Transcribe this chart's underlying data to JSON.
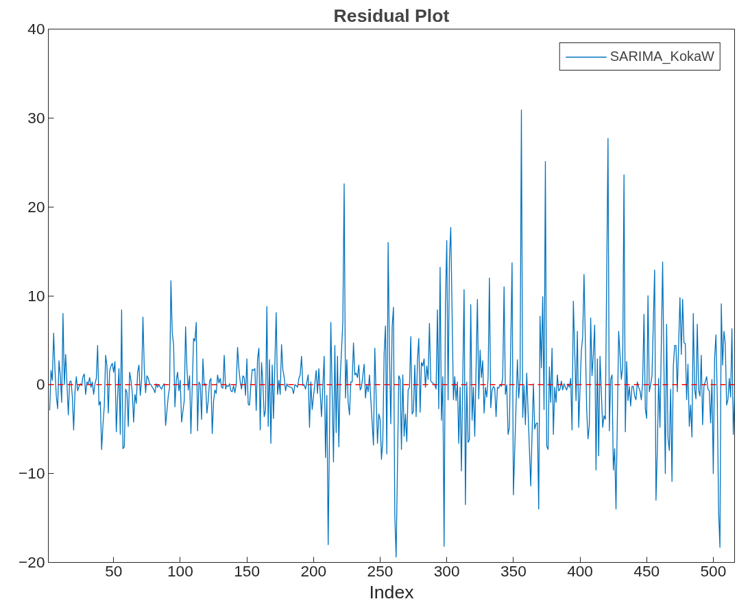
{
  "chart_data": {
    "type": "line",
    "title": "Residual Plot",
    "xlabel": "Index",
    "xlim": [
      1,
      516
    ],
    "xticks": [
      50,
      100,
      150,
      200,
      250,
      300,
      350,
      400,
      450,
      500
    ],
    "ylim": [
      -20,
      40
    ],
    "yticks": [
      -20,
      -10,
      0,
      10,
      20,
      30,
      40
    ],
    "legend": "top right",
    "ref_lines": [
      {
        "axis": "y",
        "value": 0,
        "label": null,
        "color": "#ff0000",
        "line_style": "dashed"
      }
    ],
    "series": [
      {
        "name": "SARIMA_KokaW",
        "color": "#0072bd",
        "x": [
          2,
          3,
          4,
          5,
          6,
          7,
          8,
          9,
          10,
          11,
          12,
          13,
          14,
          15,
          16,
          17,
          18,
          19,
          20,
          21,
          22,
          23,
          24,
          25,
          26,
          27,
          28,
          29,
          30,
          31,
          32,
          33,
          34,
          35,
          36,
          37,
          38,
          39,
          40,
          41,
          42,
          43,
          44,
          45,
          46,
          47,
          48,
          49,
          50,
          51,
          52,
          53,
          54,
          55,
          56,
          57,
          58,
          59,
          60,
          61,
          62,
          63,
          64,
          65,
          66,
          67,
          68,
          69,
          70,
          71,
          72,
          73,
          74,
          75,
          76,
          77,
          78,
          79,
          80,
          81,
          82,
          83,
          84,
          85,
          86,
          87,
          88,
          89,
          91,
          92,
          93,
          94,
          95,
          96,
          97,
          98,
          99,
          100,
          101,
          103,
          104,
          105,
          106,
          107,
          108,
          110,
          111,
          112,
          113,
          114,
          115,
          116,
          117,
          118,
          119,
          120,
          121,
          122,
          123,
          124,
          125,
          126,
          127,
          128,
          129,
          130,
          131,
          132,
          133,
          134,
          135,
          136,
          137,
          138,
          139,
          140,
          141,
          142,
          143,
          144,
          145,
          146,
          147,
          148,
          149,
          150,
          151,
          152,
          153,
          154,
          155,
          156,
          157,
          158,
          159,
          160,
          161,
          162,
          163,
          164,
          165,
          166,
          167,
          168,
          169,
          170,
          171,
          172,
          173,
          174,
          175,
          176,
          177,
          178,
          179,
          180,
          181,
          183,
          184,
          185,
          186,
          187,
          188,
          189,
          190,
          191,
          192,
          193,
          194,
          195,
          196,
          197,
          198,
          199,
          202,
          203,
          204,
          206,
          208,
          209,
          210,
          211,
          213,
          215,
          216,
          217,
          218,
          219,
          220,
          222,
          223,
          224,
          225,
          226,
          227,
          228,
          229,
          230,
          231,
          232,
          233,
          234,
          235,
          236,
          238,
          239,
          240,
          241,
          242,
          243,
          245,
          246,
          248,
          249,
          250,
          251,
          252,
          253,
          254,
          255,
          256,
          257,
          258,
          259,
          260,
          261,
          262,
          264,
          265,
          266,
          267,
          268,
          269,
          270,
          271,
          272,
          273,
          274,
          275,
          276,
          277,
          278,
          279,
          280,
          281,
          282,
          283,
          284,
          285,
          286,
          287,
          288,
          290,
          291,
          292,
          293,
          294,
          295,
          296,
          297,
          298,
          299,
          300,
          301,
          302,
          303,
          305,
          306,
          307,
          308,
          309,
          310,
          311,
          313,
          314,
          315,
          316,
          317,
          318,
          319,
          320,
          321,
          323,
          324,
          325,
          326,
          327,
          328,
          329,
          330,
          331,
          332,
          333,
          334,
          335,
          336,
          337,
          338,
          339,
          340,
          341,
          342,
          343,
          344,
          345,
          346,
          347,
          349,
          350,
          353,
          354,
          355,
          356,
          357,
          358,
          359,
          360,
          363,
          365,
          366,
          367,
          368,
          369,
          370,
          371,
          372,
          373,
          374,
          375,
          376,
          377,
          378,
          379,
          380,
          381,
          382,
          383,
          384,
          385,
          386,
          387,
          388,
          389,
          390,
          391,
          392,
          393,
          394,
          395,
          397,
          398,
          399,
          401,
          402,
          403,
          405,
          406,
          407,
          408,
          409,
          410,
          411,
          412,
          413,
          414,
          415,
          417,
          418,
          419,
          421,
          422,
          423,
          424,
          425,
          426,
          427,
          429,
          430,
          431,
          432,
          433,
          434,
          435,
          436,
          437,
          438,
          439,
          440,
          441,
          442,
          443,
          444,
          445,
          446,
          447,
          448,
          449,
          450,
          451,
          452,
          453,
          454,
          456,
          457,
          458,
          459,
          460,
          462,
          464,
          465,
          466,
          467,
          468,
          469,
          470,
          471,
          472,
          473,
          475,
          476,
          477,
          478,
          479,
          480,
          481,
          482,
          483,
          484,
          485,
          486,
          487,
          488,
          489,
          490,
          491,
          492,
          493,
          495,
          496,
          497,
          498,
          499,
          500,
          501,
          502,
          503,
          504,
          505,
          506,
          507,
          508,
          509,
          510,
          511,
          512,
          513,
          514,
          515,
          516
        ],
        "values": [
          -2.9,
          1.6,
          0.5,
          5.8,
          1.6,
          -1.3,
          -2.7,
          2.7,
          1.0,
          -2.0,
          8.0,
          0,
          3.4,
          0,
          -3.4,
          0.3,
          0.4,
          -1.3,
          -5.1,
          -0.8,
          0.9,
          -0.7,
          -0.2,
          0.1,
          -0.1,
          0.9,
          1.2,
          -1.1,
          0.3,
          0.1,
          0.8,
          -0.3,
          0.3,
          -1.1,
          0.1,
          0.7,
          4.4,
          -2.3,
          -1.9,
          -7.3,
          -4.5,
          -2.4,
          3.3,
          2.1,
          -3.2,
          1.5,
          2.1,
          2.4,
          1.4,
          2.6,
          -5.3,
          -1.3,
          1.8,
          -5.6,
          8.4,
          -7.2,
          -7.0,
          -0.5,
          -0.9,
          -4.7,
          1.4,
          0.5,
          -0.9,
          -4.2,
          -1.1,
          -2.1,
          1.4,
          2.2,
          -1.2,
          0.5,
          7.6,
          1.8,
          -0.9,
          1.0,
          0.7,
          0.1,
          0,
          -0.3,
          -0.5,
          -0.9,
          0.1,
          -0.3,
          0,
          -0.3,
          -0.5,
          -0.1,
          0.1,
          -4.6,
          -1.3,
          -0.3,
          11.7,
          5.8,
          4.5,
          -2.5,
          0.5,
          1.4,
          -0.7,
          0.5,
          -4.2,
          -1.8,
          6.5,
          1.8,
          -0.6,
          1.0,
          -5.5,
          5.2,
          4.9,
          7.0,
          -5.2,
          0.3,
          0,
          -3.9,
          2.9,
          -0.1,
          0.1,
          -3.2,
          -1.8,
          0.4,
          0.7,
          -5.5,
          -1.9,
          -0.6,
          -1.0,
          1.1,
          0.2,
          0.7,
          -0.3,
          -0.4,
          3.3,
          -0.5,
          -0.1,
          -0.2,
          0.1,
          -0.7,
          -0.8,
          -0.1,
          -0.9,
          0,
          4.2,
          1.8,
          0.3,
          -0.5,
          1.0,
          0.8,
          -1.2,
          2.9,
          -2.2,
          -2.3,
          0,
          1.7,
          1.6,
          1.8,
          -2.9,
          2.9,
          4.1,
          -5.1,
          2.5,
          0.1,
          -3.6,
          -2.9,
          8.8,
          -4.7,
          2.8,
          -6.6,
          2.2,
          -3.8,
          2.4,
          8.1,
          -1.1,
          0.5,
          -1.1,
          4.5,
          1.7,
          0.8,
          -0.7,
          0.1,
          -0.2,
          -0.3,
          -0.4,
          -1.0,
          0,
          -0.1,
          -0.3,
          0.7,
          1.1,
          3.2,
          -0.1,
          0,
          -0.5,
          0.3,
          1.1,
          -4.8,
          0.3,
          -2.8,
          1.6,
          -1.0,
          1.8,
          -3.6,
          3.2,
          -8.2,
          -1.2,
          -18,
          7.0,
          -8.7,
          4.4,
          -5.4,
          3.2,
          -7.0,
          0.6,
          7.0,
          22.6,
          -1.5,
          2.8,
          -2.0,
          -3.4,
          0.3,
          0.3,
          4.7,
          1.1,
          1.3,
          0.8,
          2.2,
          -0.6,
          -0.3,
          2.3,
          -1.5,
          0,
          -0.8,
          1.1,
          -1.7,
          -6.8,
          4.1,
          -6.6,
          -3.3,
          -3.9,
          -8.4,
          -6.3,
          3.5,
          6.6,
          -7.8,
          16.0,
          3.4,
          -4.4,
          6.5,
          8.7,
          -14.7,
          -19.4,
          1.0,
          0.6,
          -7.3,
          1.1,
          -5.8,
          -3.3,
          -6.4,
          -0.6,
          -0.3,
          5.4,
          -3.3,
          -3.0,
          2.2,
          -3.6,
          2.8,
          5.2,
          -3.1,
          2.5,
          2.1,
          2.9,
          -0.3,
          2.1,
          0.6,
          6.9,
          0.4,
          0.1,
          0,
          -0.5,
          8.4,
          -2.7,
          13.2,
          -4.0,
          0.9,
          -18.2,
          9.0,
          16.2,
          -1.7,
          14.1,
          17.7,
          -1.7,
          0.9,
          -1.8,
          0.3,
          -6.6,
          -0.3,
          -9.7,
          10.7,
          -13.5,
          0.3,
          -6.5,
          -6.2,
          9.0,
          -4.0,
          -0.3,
          -5.8,
          9.6,
          -1.6,
          3.9,
          0.8,
          2.7,
          -3.2,
          -0.3,
          -1.4,
          0.7,
          12.0,
          -2.6,
          -0.6,
          -0.2,
          -0.4,
          -3.6,
          -0.3,
          -0.4,
          0,
          -0.2,
          0.8,
          11.0,
          -1.1,
          0,
          -5.6,
          -4.8,
          13.7,
          -12.4,
          2.8,
          -1.5,
          0.6,
          30.9,
          -3.7,
          -0.1,
          -4.5,
          1.3,
          -11.4,
          0.1,
          -5.0,
          -4.4,
          -4.3,
          -14.0,
          7.7,
          1.9,
          9.9,
          -2.8,
          25.1,
          -6.9,
          -7.3,
          2.0,
          -2.0,
          4.1,
          -5.6,
          -0.3,
          -2.0,
          1.1,
          -0.7,
          -0.5,
          0.4,
          -0.6,
          0.1,
          -0.3,
          -0.6,
          0.1,
          -0.3,
          0.7,
          -5.1,
          9.4,
          -1.8,
          6.0,
          -4.8,
          3.8,
          5.4,
          12.4,
          -2.8,
          -6.1,
          -4.5,
          7.5,
          1.0,
          3.4,
          6.7,
          -9.6,
          2.9,
          -8.0,
          3.2,
          -4.8,
          -3.5,
          -3.9,
          27.7,
          -5.2,
          0.6,
          1.1,
          -9.6,
          -7.2,
          -14.0,
          6.0,
          3.4,
          0.6,
          2.0,
          23.6,
          -5.3,
          2.6,
          -1.8,
          -0.2,
          -2.4,
          -0.2,
          -0.2,
          -1.3,
          -1.7,
          0.3,
          -0.3,
          -0.7,
          -1.7,
          0.3,
          7.9,
          -2.7,
          -3.8,
          10.0,
          -0.8,
          0,
          1.0,
          12.9,
          -13.0,
          -7.3,
          0.7,
          -4.8,
          13.8,
          -10.0,
          6.8,
          -6.0,
          -7.4,
          -0.5,
          -10.9,
          2.0,
          4.4,
          4.4,
          -0.8,
          9.8,
          3.4,
          9.6,
          4.7,
          4.6,
          -1.7,
          2.3,
          -4.7,
          -2.3,
          -5.9,
          8.0,
          -0.5,
          -1.6,
          6.8,
          -0.6,
          -1.3,
          3.3,
          -4.5,
          -0.2,
          0.9,
          -0.5,
          -0.7,
          -4.3,
          0.6,
          -10.0,
          3.0,
          5.6,
          -1.6,
          -14.3,
          -18.3,
          9.1,
          2.2,
          6.0,
          4.6,
          -2.3,
          -1.7,
          0.7,
          -1.4,
          6.3,
          -5.6,
          -1.3
        ]
      }
    ]
  }
}
